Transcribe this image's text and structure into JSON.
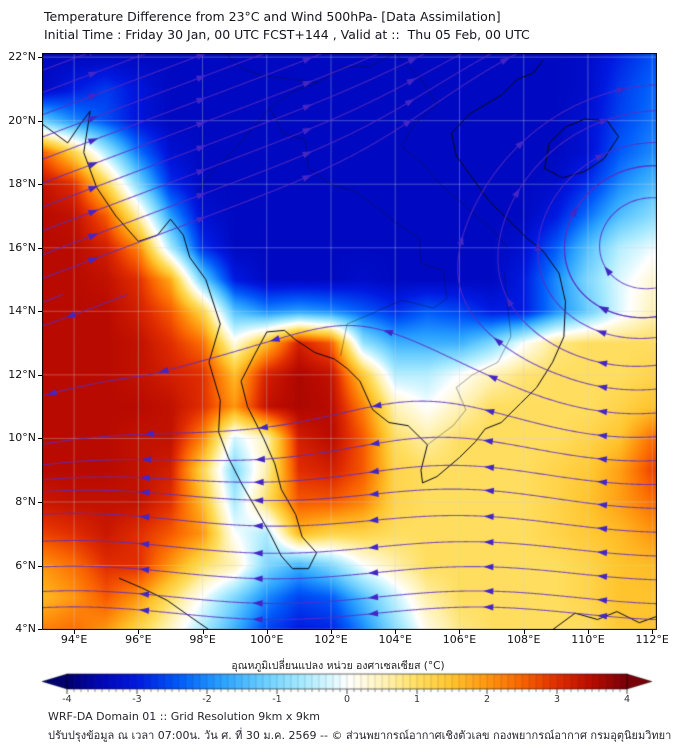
{
  "title": {
    "line1": "Temperature Difference from 23°C and Wind 500hPa- [Data Assimilation]",
    "line2": "Initial Time : Friday 30 Jan, 00 UTC FCST+144 , Valid at ::  Thu 05 Feb, 00 UTC"
  },
  "map": {
    "bounds": {
      "lon_min": 93.0,
      "lon_max": 112.15,
      "lat_min": 3.97,
      "lat_max": 22.13
    },
    "lat_tick_labels": [
      "22°N",
      "20°N",
      "18°N",
      "16°N",
      "14°N",
      "12°N",
      "10°N",
      "8°N",
      "6°N",
      "4°N"
    ],
    "lat_tick_values": [
      22,
      20,
      18,
      16,
      14,
      12,
      10,
      8,
      6,
      4
    ],
    "lon_tick_labels": [
      "94°E",
      "96°E",
      "98°E",
      "100°E",
      "102°E",
      "104°E",
      "106°E",
      "108°E",
      "110°E",
      "112°E"
    ],
    "lon_tick_values": [
      94,
      96,
      98,
      100,
      102,
      104,
      106,
      108,
      110,
      112
    ],
    "grid": {
      "lon0": 93,
      "dlon": 1,
      "lat0": 22,
      "dlat": -1,
      "values": [
        [
          -3.4,
          -3.4,
          -3.4,
          -3.4,
          -3.4,
          -3.4,
          -3.4,
          -3.4,
          -3.4,
          -3.4,
          -3.4,
          -3.4,
          -3.4,
          -3.4,
          -3.4,
          -3.4,
          -3.4,
          -3.3,
          -2.9,
          -2.5
        ],
        [
          -3.4,
          -3.0,
          -2.7,
          -3.1,
          -3.4,
          -3.4,
          -3.4,
          -3.4,
          -3.4,
          -3.4,
          -3.4,
          -3.4,
          -3.4,
          -3.4,
          -3.4,
          -3.4,
          -3.4,
          -3.3,
          -2.7,
          -2.3
        ],
        [
          -1.2,
          -2.0,
          -2.5,
          -3.1,
          -3.4,
          -3.4,
          -3.4,
          -3.4,
          -3.4,
          -3.4,
          -3.4,
          -3.4,
          -3.4,
          -3.4,
          -3.4,
          -3.4,
          -3.4,
          -3.2,
          -2.6,
          -2.2
        ],
        [
          2.6,
          1.2,
          -0.6,
          -2.2,
          -3.2,
          -3.4,
          -3.4,
          -3.4,
          -3.4,
          -3.4,
          -3.4,
          -3.4,
          -3.4,
          -3.4,
          -3.4,
          -3.4,
          -3.4,
          -3.2,
          -2.4,
          -2.0
        ],
        [
          3.4,
          3.0,
          1.2,
          -1.0,
          -2.8,
          -3.4,
          -3.4,
          -3.4,
          -3.4,
          -3.4,
          -3.4,
          -3.4,
          -3.4,
          -3.4,
          -3.4,
          -3.4,
          -3.3,
          -2.8,
          -2.0,
          -1.5
        ],
        [
          3.5,
          3.4,
          2.6,
          0.6,
          -1.8,
          -3.2,
          -3.4,
          -3.4,
          -3.4,
          -3.4,
          -3.4,
          -3.4,
          -3.4,
          -3.4,
          -3.4,
          -3.4,
          -3.0,
          -2.2,
          -1.4,
          -0.9
        ],
        [
          3.5,
          3.5,
          3.2,
          2.2,
          -0.6,
          -2.8,
          -3.4,
          -3.4,
          -3.4,
          -3.4,
          -3.4,
          -3.4,
          -3.4,
          -3.4,
          -3.4,
          -3.2,
          -2.4,
          -1.4,
          -0.5,
          -0.1
        ],
        [
          3.5,
          3.5,
          3.4,
          3.0,
          1.8,
          -1.2,
          -3.0,
          -3.4,
          -3.4,
          -3.4,
          -3.3,
          -3.4,
          -3.4,
          -3.4,
          -3.4,
          -3.0,
          -2.0,
          -1.0,
          -0.2,
          0.3
        ],
        [
          3.5,
          3.5,
          3.5,
          3.2,
          2.6,
          1.2,
          -1.4,
          -2.0,
          -1.8,
          -2.0,
          -2.4,
          -2.8,
          -2.4,
          -2.6,
          -3.0,
          -3.0,
          -2.0,
          -1.2,
          -0.2,
          0.5
        ],
        [
          3.5,
          3.5,
          3.5,
          3.4,
          3.0,
          2.4,
          0.2,
          1.6,
          3.2,
          2.6,
          -0.8,
          -1.6,
          -1.6,
          -1.6,
          -1.0,
          0.0,
          0.8,
          1.0,
          1.0,
          1.0
        ],
        [
          3.5,
          3.5,
          3.5,
          3.4,
          3.2,
          3.0,
          1.6,
          3.2,
          3.6,
          3.4,
          1.4,
          -0.5,
          -0.5,
          0.0,
          0.5,
          0.9,
          1.0,
          1.0,
          1.0,
          1.2
        ],
        [
          3.5,
          3.5,
          3.5,
          3.5,
          3.4,
          3.0,
          2.0,
          3.4,
          3.6,
          3.5,
          2.2,
          0.5,
          0.0,
          0.5,
          1.0,
          1.0,
          1.0,
          1.0,
          1.2,
          1.5
        ],
        [
          3.5,
          3.5,
          3.5,
          3.4,
          3.4,
          2.2,
          -0.3,
          0.5,
          3.2,
          3.5,
          2.6,
          1.0,
          0.6,
          1.0,
          1.0,
          1.0,
          1.0,
          1.2,
          1.5,
          2.4
        ],
        [
          3.5,
          3.5,
          3.5,
          3.4,
          3.2,
          1.2,
          -1.0,
          0.6,
          3.0,
          3.2,
          2.6,
          1.2,
          1.0,
          1.0,
          1.0,
          1.0,
          1.2,
          1.4,
          1.9,
          2.8
        ],
        [
          3.3,
          3.4,
          3.4,
          3.4,
          3.0,
          1.6,
          -0.6,
          1.0,
          2.6,
          2.6,
          2.2,
          1.2,
          1.0,
          1.0,
          1.0,
          1.0,
          1.2,
          1.5,
          1.9,
          2.4
        ],
        [
          2.8,
          3.0,
          3.3,
          3.0,
          2.6,
          2.0,
          0.0,
          -0.6,
          1.6,
          1.2,
          1.2,
          1.0,
          1.0,
          1.0,
          1.0,
          1.0,
          1.2,
          1.4,
          1.6,
          2.0
        ],
        [
          2.0,
          2.4,
          3.0,
          3.0,
          2.0,
          1.0,
          0.5,
          -1.0,
          -1.6,
          -1.0,
          0.0,
          0.6,
          1.0,
          1.0,
          1.0,
          1.0,
          1.0,
          1.2,
          1.5,
          1.6
        ],
        [
          1.6,
          2.0,
          2.6,
          2.0,
          1.0,
          0.0,
          -1.0,
          -2.0,
          -2.6,
          -2.4,
          -1.4,
          -0.4,
          0.6,
          1.0,
          1.0,
          1.0,
          1.0,
          1.2,
          1.5,
          1.5
        ],
        [
          2.2,
          2.4,
          2.0,
          1.2,
          0.4,
          -0.6,
          -1.6,
          -2.6,
          -3.0,
          -2.9,
          -2.0,
          -0.9,
          0.2,
          0.8,
          1.0,
          1.0,
          1.0,
          1.0,
          1.4,
          1.5
        ]
      ]
    },
    "colormap": [
      [
        -4.0,
        [
          0,
          0,
          110
        ]
      ],
      [
        -3.5,
        [
          0,
          5,
          185
        ]
      ],
      [
        -3.0,
        [
          0,
          25,
          225
        ]
      ],
      [
        -2.4,
        [
          0,
          90,
          250
        ]
      ],
      [
        -1.8,
        [
          40,
          160,
          255
        ]
      ],
      [
        -1.2,
        [
          105,
          205,
          255
        ]
      ],
      [
        -0.6,
        [
          170,
          235,
          255
        ]
      ],
      [
        -0.15,
        [
          228,
          250,
          255
        ]
      ],
      [
        0.0,
        [
          255,
          255,
          255
        ]
      ],
      [
        0.15,
        [
          255,
          252,
          235
        ]
      ],
      [
        0.6,
        [
          255,
          240,
          170
        ]
      ],
      [
        1.0,
        [
          255,
          222,
          95
        ]
      ],
      [
        1.5,
        [
          255,
          196,
          45
        ]
      ],
      [
        2.0,
        [
          255,
          150,
          15
        ]
      ],
      [
        2.5,
        [
          250,
          100,
          0
        ]
      ],
      [
        3.0,
        [
          225,
          45,
          0
        ]
      ],
      [
        3.5,
        [
          185,
          10,
          0
        ]
      ],
      [
        4.0,
        [
          120,
          0,
          8
        ]
      ]
    ],
    "gridline_color": "rgba(205,210,220,0.45)",
    "coast_color": "#0a0a14",
    "border_color": "rgba(15,15,35,0.55)",
    "coastlines": [
      [
        [
          93.0,
          19.9
        ],
        [
          93.8,
          19.3
        ],
        [
          94.2,
          19.9
        ],
        [
          94.5,
          20.3
        ],
        [
          94.3,
          19.0
        ],
        [
          94.7,
          17.9
        ],
        [
          95.3,
          17.0
        ],
        [
          96.0,
          16.2
        ],
        [
          96.6,
          16.4
        ],
        [
          97.0,
          16.9
        ],
        [
          97.4,
          16.4
        ],
        [
          97.6,
          15.7
        ],
        [
          98.1,
          15.0
        ],
        [
          98.55,
          13.6
        ],
        [
          98.2,
          12.4
        ],
        [
          98.55,
          11.2
        ],
        [
          98.5,
          10.2
        ],
        [
          98.8,
          9.4
        ],
        [
          99.2,
          8.6
        ],
        [
          99.6,
          7.9
        ],
        [
          100.1,
          7.0
        ],
        [
          100.45,
          6.3
        ],
        [
          100.8,
          5.9
        ],
        [
          101.3,
          5.9
        ],
        [
          101.55,
          6.4
        ],
        [
          101.1,
          6.9
        ],
        [
          100.9,
          7.6
        ],
        [
          100.45,
          8.4
        ],
        [
          100.25,
          9.2
        ],
        [
          99.9,
          10.0
        ],
        [
          99.4,
          11.0
        ],
        [
          99.2,
          11.8
        ],
        [
          99.6,
          12.6
        ],
        [
          100.0,
          13.35
        ],
        [
          100.55,
          13.4
        ],
        [
          100.9,
          13.1
        ],
        [
          101.5,
          12.7
        ],
        [
          102.1,
          12.5
        ],
        [
          102.5,
          12.2
        ],
        [
          102.9,
          11.8
        ],
        [
          103.3,
          10.9
        ],
        [
          103.8,
          10.5
        ],
        [
          104.4,
          10.4
        ],
        [
          105.0,
          9.8
        ],
        [
          104.8,
          9.0
        ],
        [
          104.85,
          8.6
        ],
        [
          105.3,
          8.8
        ],
        [
          106.0,
          9.4
        ],
        [
          106.5,
          9.9
        ],
        [
          106.8,
          10.3
        ],
        [
          107.3,
          10.5
        ],
        [
          107.9,
          11.1
        ],
        [
          108.4,
          11.6
        ],
        [
          108.9,
          12.4
        ],
        [
          109.25,
          13.2
        ],
        [
          109.3,
          14.3
        ],
        [
          109.1,
          15.2
        ],
        [
          108.6,
          15.9
        ],
        [
          108.1,
          16.3
        ],
        [
          107.5,
          16.9
        ],
        [
          106.9,
          17.5
        ],
        [
          106.4,
          18.2
        ],
        [
          105.9,
          18.9
        ],
        [
          105.75,
          19.6
        ],
        [
          106.3,
          20.2
        ],
        [
          106.8,
          20.5
        ],
        [
          107.3,
          20.8
        ],
        [
          107.8,
          21.3
        ],
        [
          108.3,
          21.5
        ],
        [
          108.6,
          21.9
        ]
      ],
      [
        [
          108.65,
          18.5
        ],
        [
          109.2,
          18.2
        ],
        [
          109.9,
          18.4
        ],
        [
          110.5,
          18.8
        ],
        [
          110.95,
          19.5
        ],
        [
          110.6,
          20.0
        ],
        [
          109.9,
          20.05
        ],
        [
          109.3,
          19.8
        ],
        [
          108.8,
          19.3
        ],
        [
          108.65,
          18.5
        ]
      ],
      [
        [
          95.4,
          5.6
        ],
        [
          96.1,
          5.3
        ],
        [
          96.9,
          4.9
        ],
        [
          97.6,
          4.4
        ],
        [
          98.2,
          3.98
        ]
      ],
      [
        [
          108.9,
          3.98
        ],
        [
          109.6,
          4.5
        ],
        [
          110.3,
          4.3
        ],
        [
          110.9,
          4.55
        ],
        [
          111.6,
          4.2
        ],
        [
          112.15,
          4.4
        ]
      ]
    ],
    "borders": [
      [
        [
          97.8,
          17.7
        ],
        [
          98.3,
          18.4
        ],
        [
          99.0,
          19.1
        ],
        [
          99.6,
          19.8
        ],
        [
          100.1,
          20.4
        ],
        [
          100.8,
          20.9
        ],
        [
          101.6,
          21.2
        ],
        [
          102.4,
          21.7
        ],
        [
          103.2,
          21.7
        ],
        [
          104.0,
          22.12
        ]
      ],
      [
        [
          98.7,
          22.12
        ],
        [
          99.3,
          21.6
        ],
        [
          100.0,
          21.4
        ],
        [
          100.8,
          21.3
        ],
        [
          101.6,
          21.2
        ]
      ],
      [
        [
          100.1,
          20.4
        ],
        [
          100.5,
          19.6
        ],
        [
          101.2,
          19.4
        ],
        [
          101.3,
          18.5
        ],
        [
          102.0,
          18.0
        ],
        [
          102.7,
          17.8
        ],
        [
          103.4,
          17.3
        ],
        [
          104.0,
          16.8
        ],
        [
          104.75,
          16.3
        ],
        [
          104.8,
          15.5
        ],
        [
          105.5,
          15.3
        ],
        [
          105.6,
          14.4
        ],
        [
          105.2,
          14.1
        ]
      ],
      [
        [
          102.5,
          13.6
        ],
        [
          103.2,
          13.9
        ],
        [
          104.2,
          14.35
        ],
        [
          105.2,
          14.1
        ]
      ],
      [
        [
          102.5,
          13.6
        ],
        [
          102.3,
          12.6
        ]
      ],
      [
        [
          104.0,
          22.12
        ],
        [
          104.8,
          21.3
        ],
        [
          105.3,
          20.5
        ],
        [
          104.6,
          19.9
        ],
        [
          104.2,
          19.2
        ],
        [
          104.9,
          18.6
        ],
        [
          105.4,
          18.0
        ],
        [
          106.3,
          17.2
        ],
        [
          107.0,
          16.6
        ],
        [
          107.5,
          16.0
        ]
      ],
      [
        [
          105.0,
          9.8
        ],
        [
          105.8,
          10.4
        ],
        [
          106.2,
          10.9
        ],
        [
          105.9,
          11.6
        ],
        [
          106.4,
          12.0
        ],
        [
          107.2,
          12.4
        ],
        [
          107.6,
          13.2
        ],
        [
          107.5,
          14.2
        ],
        [
          107.4,
          15.2
        ]
      ]
    ],
    "wind": {
      "line_color": "rgba(90,45,195,0.8)",
      "arrow_color": "#4326c6",
      "shear_lat": 14.6,
      "shear_scale": 2.6,
      "tilt": 0.38,
      "vortex_center": [
        111.8,
        16.4
      ],
      "vortex_strength": 1.6,
      "vortex_radius2": 20,
      "seeds_east": [
        [
          93.05,
          21.6
        ],
        [
          93.05,
          20.9
        ],
        [
          93.05,
          20.2
        ],
        [
          93.05,
          19.5
        ],
        [
          93.05,
          18.8
        ],
        [
          93.05,
          18.05
        ],
        [
          93.05,
          17.3
        ],
        [
          93.05,
          16.55
        ],
        [
          93.05,
          15.8
        ],
        [
          93.05,
          15.05
        ],
        [
          93.05,
          14.3
        ],
        [
          93.05,
          13.55
        ]
      ],
      "seeds_west": [
        [
          112.1,
          12.3
        ],
        [
          112.1,
          11.55
        ],
        [
          112.1,
          10.8
        ],
        [
          112.1,
          10.05
        ],
        [
          112.1,
          9.3
        ],
        [
          112.1,
          8.55
        ],
        [
          112.1,
          7.8
        ],
        [
          112.1,
          7.05
        ],
        [
          112.1,
          6.3
        ],
        [
          112.1,
          5.55
        ],
        [
          112.1,
          4.8
        ],
        [
          112.1,
          4.3
        ]
      ],
      "seeds_vortex": [
        [
          110.9,
          15.0
        ],
        [
          109.8,
          14.6
        ],
        [
          108.6,
          15.0
        ],
        [
          111.8,
          13.8
        ]
      ]
    }
  },
  "colorbar": {
    "label": "อุณหภูมิเปลี่ยนแปลง หน่วย องศาเซลเซียส (°C)",
    "min": -4,
    "max": 4,
    "segment_step": 0.1,
    "tick_labels": [
      "-4",
      "-3",
      "-2",
      "-1",
      "0",
      "1",
      "2",
      "3",
      "4"
    ],
    "tick_values": [
      -4,
      -3,
      -2,
      -1,
      0,
      1,
      2,
      3,
      4
    ]
  },
  "footer": {
    "line1": "WRF-DA Domain 01 :: Grid Resolution 9km x 9km",
    "line2": "ปรับปรุงข้อมูล ณ เวลา 07:00น. วัน ศ. ที่ 30 ม.ค. 2569 -- © ส่วนพยากรณ์อากาศเชิงตัวเลข กองพยากรณ์อากาศ กรมอุตุนิยมวิทยา"
  }
}
